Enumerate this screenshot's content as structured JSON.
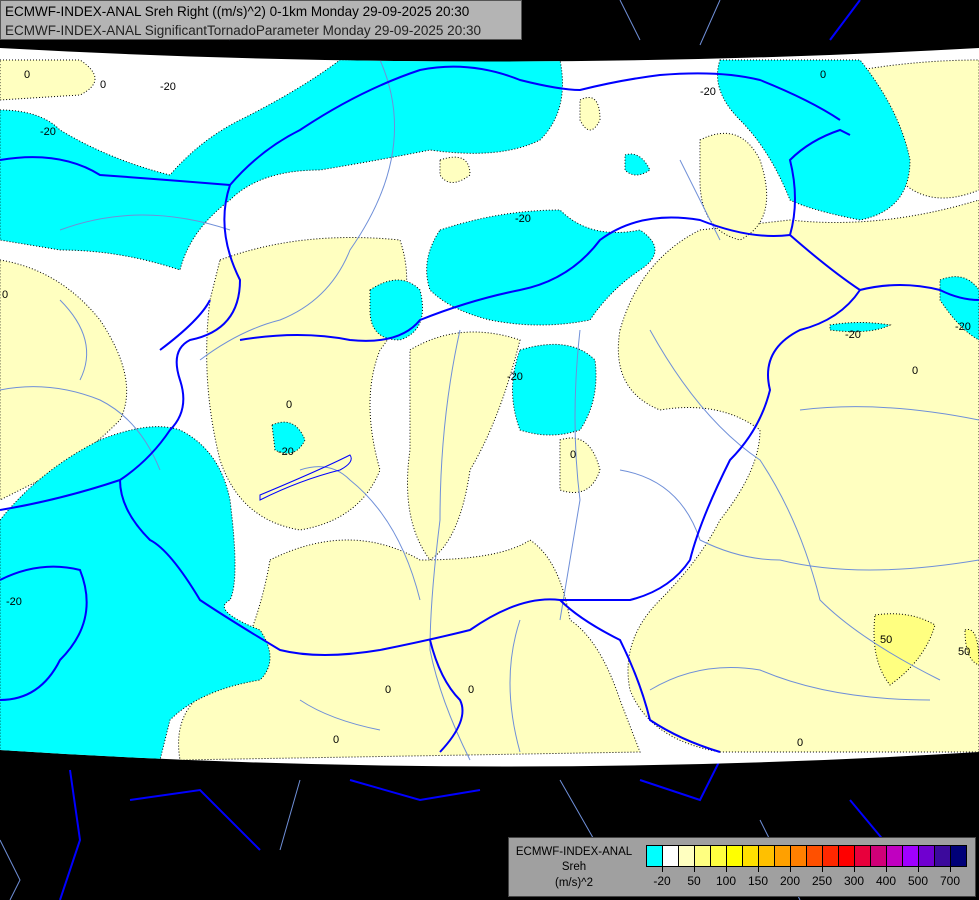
{
  "title": {
    "line1": "ECMWF-INDEX-ANAL Sreh Right ((m/s)^2) 0-1km Monday 29-09-2025 20:30",
    "line2": "ECMWF-INDEX-ANAL SignificantTornadoParameter Monday 29-09-2025 20:30"
  },
  "legend": {
    "model": "ECMWF-INDEX-ANAL",
    "variable": "Sreh",
    "unit": "(m/s)^2",
    "colors": [
      "#00ffff",
      "#ffffff",
      "#ffffc0",
      "#ffff80",
      "#ffff40",
      "#ffff00",
      "#ffe000",
      "#ffc000",
      "#ffa000",
      "#ff8000",
      "#ff5000",
      "#ff2800",
      "#ff0000",
      "#e8003c",
      "#d00078",
      "#c000c0",
      "#a000ff",
      "#7000d0",
      "#3c0a9c",
      "#000078"
    ],
    "tick_labels": [
      "-20",
      "50",
      "100",
      "150",
      "200",
      "250",
      "300",
      "400",
      "500",
      "700"
    ]
  },
  "contour_labels": {
    "zero": "0",
    "minus20": "-20",
    "fifty": "50"
  },
  "colors": {
    "no_data": "#000000",
    "borders": "#0000ff",
    "rivers": "#6f8fd8"
  }
}
